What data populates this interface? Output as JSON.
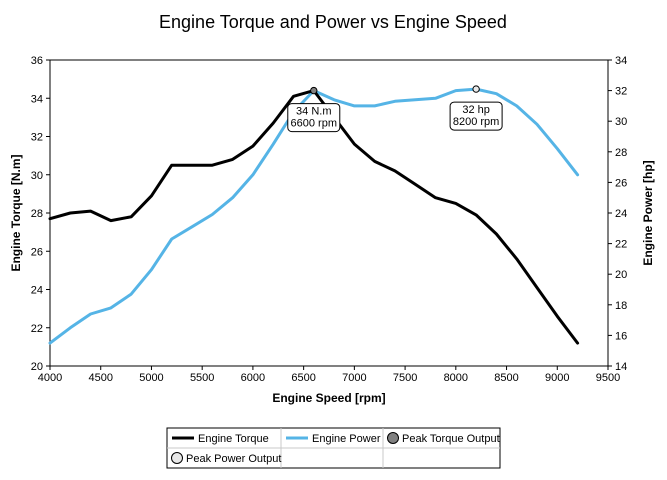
{
  "chart_data": {
    "type": "line",
    "title": "Engine Torque and Power vs Engine Speed",
    "xlabel": "Engine Speed [rpm]",
    "ylabel_left": "Engine Torque [N.m]",
    "ylabel_right": "Engine Power [hp]",
    "xlim": [
      4000,
      9500
    ],
    "xticks": [
      4000,
      4500,
      5000,
      5500,
      6000,
      6500,
      7000,
      7500,
      8000,
      8500,
      9000,
      9500
    ],
    "ylim_left": [
      20,
      36
    ],
    "yticks_left": [
      20,
      22,
      24,
      26,
      28,
      30,
      32,
      34,
      36
    ],
    "ylim_right": [
      14,
      34
    ],
    "yticks_right": [
      14,
      16,
      18,
      20,
      22,
      24,
      26,
      28,
      30,
      32,
      34
    ],
    "grid": false,
    "legend_position": "bottom",
    "series": [
      {
        "name": "Engine Torque",
        "axis": "left",
        "color": "#000000",
        "x": [
          4000,
          4200,
          4400,
          4600,
          4800,
          5000,
          5200,
          5400,
          5600,
          5800,
          6000,
          6200,
          6400,
          6600,
          6800,
          7000,
          7200,
          7400,
          7600,
          7800,
          8000,
          8200,
          8400,
          8600,
          8800,
          9000,
          9200
        ],
        "y": [
          27.7,
          28.0,
          28.1,
          27.6,
          27.8,
          28.9,
          30.5,
          30.5,
          30.5,
          30.8,
          31.5,
          32.7,
          34.1,
          34.4,
          33.0,
          31.6,
          30.7,
          30.2,
          29.5,
          28.8,
          28.5,
          27.9,
          26.9,
          25.6,
          24.1,
          22.6,
          21.2
        ]
      },
      {
        "name": "Engine Power",
        "axis": "right",
        "color": "#55b4e6",
        "x": [
          4000,
          4200,
          4400,
          4600,
          4800,
          5000,
          5200,
          5400,
          5600,
          5800,
          6000,
          6200,
          6400,
          6600,
          6800,
          7000,
          7200,
          7400,
          7600,
          7800,
          8000,
          8200,
          8400,
          8600,
          8800,
          9000,
          9200
        ],
        "y": [
          15.5,
          16.5,
          17.4,
          17.8,
          18.7,
          20.3,
          22.3,
          23.1,
          23.9,
          25.0,
          26.5,
          28.5,
          30.6,
          32.0,
          31.4,
          31.0,
          31.0,
          31.3,
          31.4,
          31.5,
          32.0,
          32.1,
          31.8,
          31.0,
          29.8,
          28.2,
          26.5
        ]
      }
    ],
    "annotations": [
      {
        "name": "Peak Torque Output",
        "axis": "left",
        "x": 6600,
        "y": 34.4,
        "label_lines": [
          "34 N.m",
          "6600 rpm"
        ],
        "marker_color": "#808080"
      },
      {
        "name": "Peak Power Output",
        "axis": "right",
        "x": 8200,
        "y": 32.1,
        "label_lines": [
          "32 hp",
          "8200 rpm"
        ],
        "marker_color": "#e8e8e8"
      }
    ],
    "legend": [
      {
        "label": "Engine Torque",
        "kind": "line",
        "color": "#000000"
      },
      {
        "label": "Engine Power",
        "kind": "line",
        "color": "#55b4e6"
      },
      {
        "label": "Peak Torque Output",
        "kind": "marker",
        "color": "#808080"
      },
      {
        "label": "Peak Power Output",
        "kind": "marker",
        "color": "#e8e8e8"
      }
    ]
  }
}
